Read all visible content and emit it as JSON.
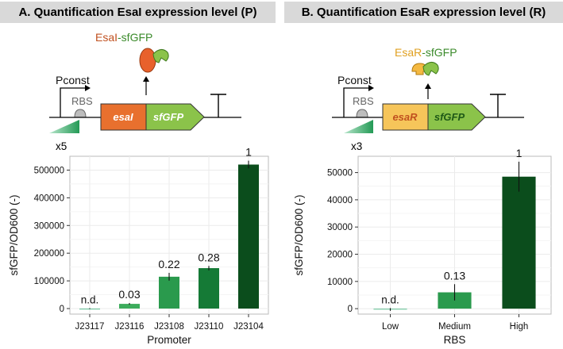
{
  "panels": [
    {
      "title": "A. Quantification EsaI expression level (P)",
      "diagram": {
        "fusion_part1": "EsaI",
        "fusion_part2": "-sfGFP",
        "promoter": "Pconst",
        "rbs": "RBS",
        "gene1": "esaI",
        "gene2": "sfGFP",
        "variants": "x5"
      }
    },
    {
      "title": "B. Quantification EsaR expression level (R)",
      "diagram": {
        "fusion_part1": "EsaR",
        "fusion_part2": "-sfGFP",
        "promoter": "Pconst",
        "rbs": "RBS",
        "gene1": "esaR",
        "gene2": "sfGFP",
        "variants": "x3"
      }
    }
  ],
  "colors": {
    "esaI_protein": "#e8612c",
    "esaR_protein": "#f4b942",
    "sfgfp": "#8bc34a",
    "esaI_label": "#c0501f",
    "esaR_label": "#e0a020",
    "sfgfp_label": "#3a8a2a"
  },
  "chart_data": [
    {
      "type": "bar",
      "xlabel": "Promoter",
      "ylabel": "sfGFP/OD600 (-)",
      "categories": [
        "J23117",
        "J23116",
        "J23108",
        "J23110",
        "J23104"
      ],
      "values": [
        0,
        17000,
        115000,
        146000,
        520000
      ],
      "errors": [
        1500,
        3000,
        14000,
        8000,
        14000
      ],
      "labels": [
        "n.d.",
        "0.03",
        "0.22",
        "0.28",
        "1"
      ],
      "colors": [
        "#74c7a0",
        "#3cac5c",
        "#2a9a4d",
        "#157a36",
        "#0b4d1c"
      ],
      "ylim": [
        -20000,
        550000
      ],
      "yticks": [
        0,
        100000,
        200000,
        300000,
        400000,
        500000
      ],
      "grid": true
    },
    {
      "type": "bar",
      "xlabel": "RBS",
      "ylabel": "sfGFP/OD600 (-)",
      "categories": [
        "Low",
        "Medium",
        "High"
      ],
      "values": [
        -300,
        6000,
        48500
      ],
      "errors": [
        500,
        3000,
        5500
      ],
      "labels": [
        "n.d.",
        "0.13",
        "1"
      ],
      "colors": [
        "#74c7a0",
        "#2a9a4d",
        "#0b4d1c"
      ],
      "ylim": [
        -2000,
        56000
      ],
      "yticks": [
        0,
        10000,
        20000,
        30000,
        40000,
        50000
      ],
      "grid": true
    }
  ]
}
